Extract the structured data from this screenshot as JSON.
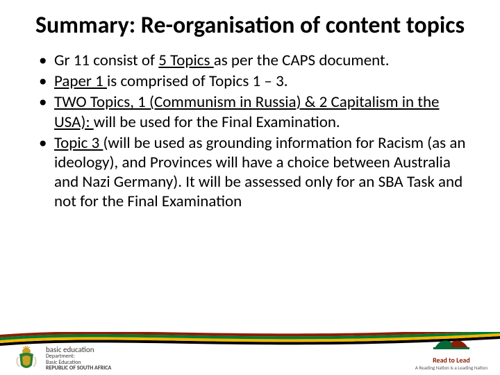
{
  "title": {
    "text": "Summary: Re-organisation of content  topics",
    "fontsize": 34,
    "color": "#000000"
  },
  "bullets": {
    "fontsize": 23,
    "color": "#000000",
    "items": [
      {
        "runs": [
          {
            "t": "Gr 11 consist of "
          },
          {
            "t": "5 Topics ",
            "u": true
          },
          {
            "t": "as per the CAPS document."
          }
        ]
      },
      {
        "runs": [
          {
            "t": "Paper 1 ",
            "u": true
          },
          {
            "t": "is comprised of Topics 1 – 3."
          }
        ]
      },
      {
        "runs": [
          {
            "t": "TWO Topics, 1 (Communism in Russia) & 2 Capitalism in the USA): ",
            "u": true
          },
          {
            "t": "will be used for the Final Examination."
          }
        ]
      },
      {
        "runs": [
          {
            "t": "Topic 3 ",
            "u": true
          },
          {
            "t": "(will be used as grounding information for Racism (as an ideology), and Provinces will have a choice between Australia and Nazi Germany). It will be assessed only for an SBA Task and not for the Final Examination"
          }
        ]
      }
    ]
  },
  "footer": {
    "wave_colors": [
      "#000000",
      "#f2b600",
      "#007a33",
      "#8a1e04"
    ],
    "dept": {
      "line1": "basic education",
      "line2": "Department:",
      "line3": "Basic Education",
      "line4": "REPUBLIC OF SOUTH AFRICA"
    },
    "coat_colors": {
      "gold": "#c9a227",
      "green": "#2e7d32",
      "red": "#b22222",
      "blue": "#1e4e8c"
    },
    "read_to_lead": {
      "title": "Read to Lead",
      "sub": "A Reading Nation is a Leading Nation",
      "color1": "#026937",
      "color2": "#8a1e04"
    }
  }
}
